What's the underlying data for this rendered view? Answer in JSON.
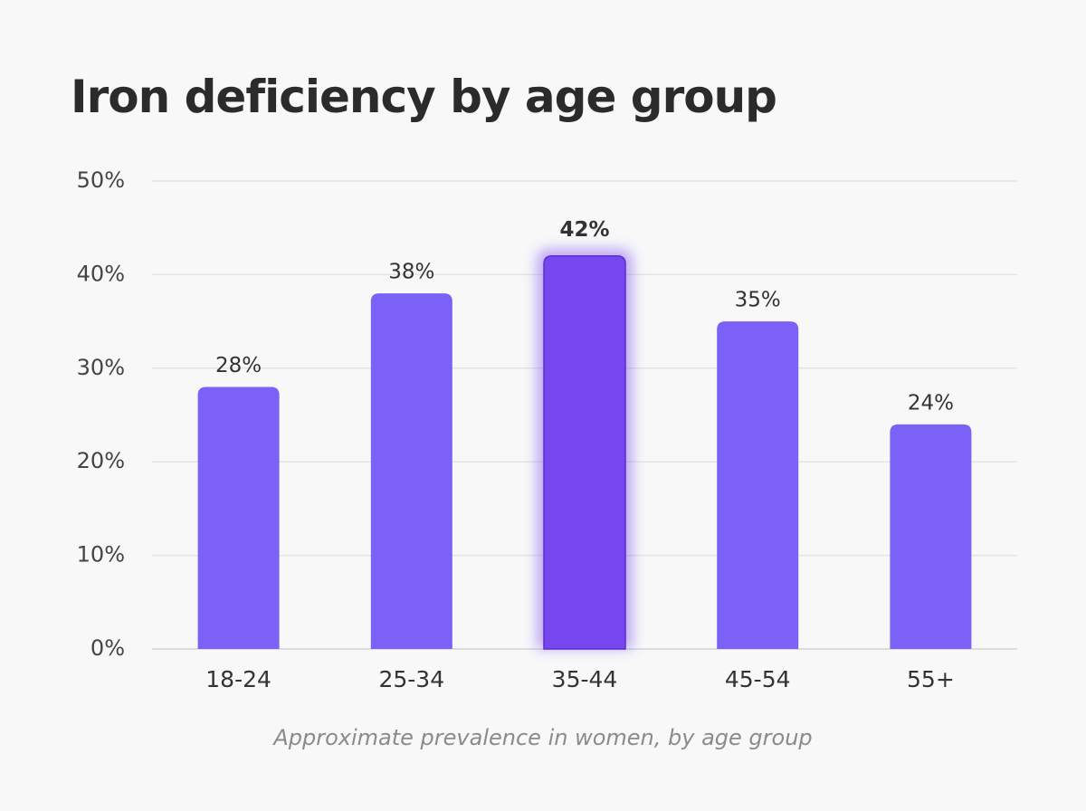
{
  "chart_data": {
    "type": "bar",
    "title": "Iron deficiency by age group",
    "caption": "Approximate prevalence in women, by age group",
    "categories": [
      "18-24",
      "25-34",
      "35-44",
      "45-54",
      "55+"
    ],
    "values": [
      28,
      38,
      42,
      35,
      24
    ],
    "value_labels": [
      "28%",
      "38%",
      "42%",
      "35%",
      "24%"
    ],
    "colors": [
      "#7b61f5",
      "#7b61f5",
      "#7646ef",
      "#7b61f5",
      "#7b61f5"
    ],
    "ylim": [
      0,
      50
    ],
    "yticks": [
      {
        "value": 0,
        "label": "0%"
      },
      {
        "value": 10,
        "label": "10%"
      },
      {
        "value": 20,
        "label": "20%"
      },
      {
        "value": 30,
        "label": "30%"
      },
      {
        "value": 40,
        "label": "40%"
      },
      {
        "value": 50,
        "label": "50%"
      }
    ],
    "grid": true
  }
}
